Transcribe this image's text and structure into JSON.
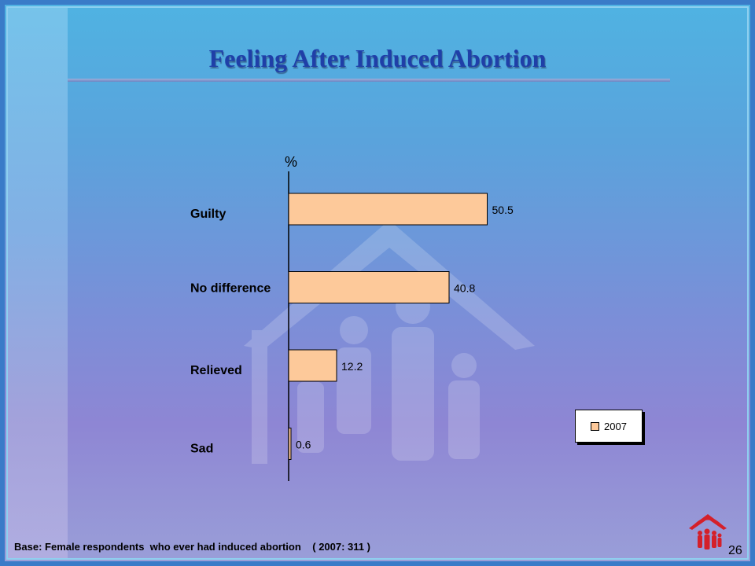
{
  "slide": {
    "title": "Feeling After Induced Abortion",
    "footnote": "Base: Female respondents  who ever had induced abortion    ( 2007: 311 )",
    "page_number": "26",
    "colors": {
      "bar_fill": "#fdc99a",
      "title": "#1f3fa8",
      "logo": "#d4202a"
    },
    "icons": {
      "watermark": "family-house-watermark-icon",
      "logo": "family-house-logo-icon"
    }
  },
  "chart_data": {
    "type": "bar",
    "orientation": "horizontal",
    "title": "",
    "xlabel": "%",
    "ylabel": "",
    "categories": [
      "Guilty",
      "No difference",
      "Relieved",
      "Sad"
    ],
    "series": [
      {
        "name": "2007",
        "values": [
          50.5,
          40.8,
          12.2,
          0.6
        ]
      }
    ],
    "xlim": [
      0,
      100
    ],
    "grid": false,
    "legend": "bottom-right"
  }
}
